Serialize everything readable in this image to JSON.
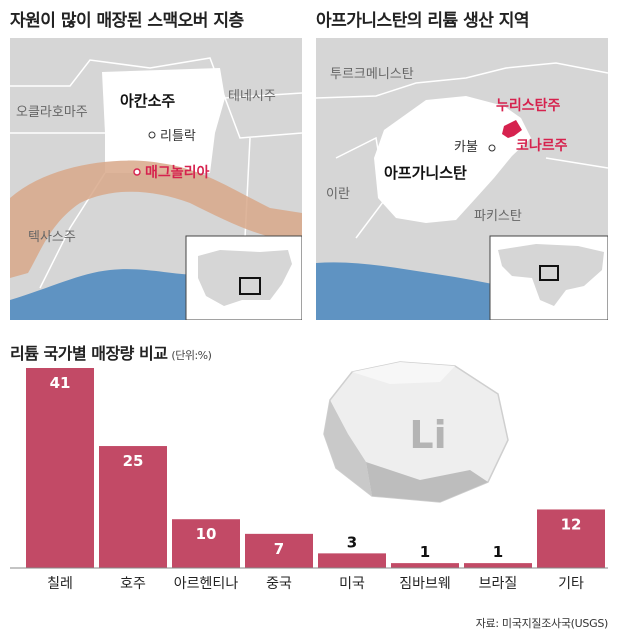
{
  "maps": {
    "left": {
      "title": "자원이 많이 매장된 스맥오버 지층",
      "labels": {
        "oklahoma": "오클라호마주",
        "arkansas": "아칸소주",
        "tennessee": "테네시주",
        "little_rock": "리틀락",
        "magnolia": "매그놀리아",
        "texas": "텍사스주"
      }
    },
    "right": {
      "title": "아프가니스탄의 리튬 생산 지역",
      "labels": {
        "turkmenistan": "투르크메니스탄",
        "nuristan": "누리스탄주",
        "kunar": "코나르주",
        "kabul": "카불",
        "afghanistan": "아프가니스탄",
        "iran": "이란",
        "pakistan": "파키스탄"
      }
    }
  },
  "chart_title": "리튬 국가별 매장량 비교",
  "chart_unit": "(단위:%)",
  "logo_text": "Li",
  "source": "자료: 미국지질조사국(USGS)",
  "colors": {
    "bar": "#c24a66",
    "bar_highlight": "#d24b6d",
    "map_land": "#d6d6d6",
    "map_focus": "#ffffff",
    "water": "#5f93c2",
    "smackover": "#d8a88a",
    "accent": "#d6224e"
  },
  "chart_data": {
    "type": "bar",
    "title": "리튬 국가별 매장량 비교",
    "unit": "%",
    "categories": [
      "칠레",
      "호주",
      "아르헨티나",
      "중국",
      "미국",
      "짐바브웨",
      "브라질",
      "기타"
    ],
    "values": [
      41,
      25,
      10,
      7,
      3,
      1,
      1,
      12
    ],
    "ylim": [
      0,
      41
    ],
    "grid": false
  }
}
